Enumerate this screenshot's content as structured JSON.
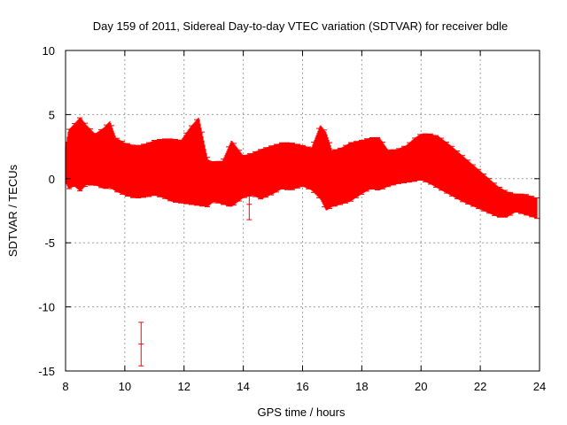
{
  "chart_data": {
    "type": "scatter",
    "title": "Day 159 of 2011, Sidereal Day-to-day VTEC variation (SDTVAR) for receiver bdle",
    "xlabel": "GPS time / hours",
    "ylabel": "SDTVAR / TECUs",
    "xlim": [
      8,
      24
    ],
    "ylim": [
      -15,
      10
    ],
    "xticks": [
      8,
      10,
      12,
      14,
      16,
      18,
      20,
      22,
      24
    ],
    "yticks": [
      -15,
      -10,
      -5,
      0,
      5,
      10
    ],
    "grid": true,
    "series_color": "#ff0000",
    "envelope": {
      "x": [
        8.0,
        8.1,
        8.3,
        8.5,
        8.7,
        9.0,
        9.3,
        9.5,
        9.7,
        10.0,
        10.3,
        10.5,
        10.8,
        11.0,
        11.3,
        11.6,
        11.9,
        12.2,
        12.5,
        12.8,
        13.0,
        13.3,
        13.6,
        14.0,
        14.3,
        14.6,
        15.0,
        15.3,
        15.6,
        16.0,
        16.3,
        16.6,
        16.8,
        17.0,
        17.3,
        17.6,
        18.0,
        18.3,
        18.6,
        18.9,
        19.2,
        19.5,
        19.8,
        20.0,
        20.3,
        20.6,
        21.0,
        21.4,
        21.8,
        22.2,
        22.6,
        22.9,
        23.2,
        23.5,
        23.9
      ],
      "upper": [
        2.5,
        3.8,
        4.3,
        4.8,
        4.2,
        3.5,
        4.0,
        4.5,
        3.2,
        2.8,
        2.6,
        2.6,
        2.8,
        3.0,
        3.1,
        3.1,
        3.0,
        4.0,
        4.8,
        1.5,
        1.3,
        1.4,
        3.0,
        1.8,
        2.0,
        2.3,
        2.6,
        2.8,
        2.8,
        2.6,
        2.4,
        4.2,
        3.6,
        2.2,
        2.4,
        2.8,
        3.0,
        3.2,
        3.2,
        2.2,
        2.3,
        2.6,
        3.2,
        3.5,
        3.5,
        3.3,
        2.6,
        1.8,
        1.0,
        0.2,
        -0.6,
        -1.0,
        -1.2,
        -1.2,
        -1.5
      ],
      "lower": [
        -0.3,
        -0.8,
        -0.6,
        -1.0,
        -0.5,
        -0.5,
        -0.8,
        -0.7,
        -1.0,
        -1.3,
        -1.5,
        -1.5,
        -1.4,
        -1.3,
        -1.5,
        -1.8,
        -1.9,
        -2.0,
        -2.1,
        -2.2,
        -1.8,
        -2.0,
        -2.2,
        -1.5,
        -1.3,
        -1.6,
        -1.2,
        -0.8,
        -0.9,
        -0.6,
        -0.9,
        -1.6,
        -2.5,
        -2.2,
        -2.0,
        -1.8,
        -1.2,
        -0.8,
        -0.9,
        -0.6,
        -0.4,
        -0.3,
        -0.2,
        -0.1,
        -0.4,
        -0.8,
        -1.3,
        -1.8,
        -2.2,
        -2.6,
        -3.0,
        -3.0,
        -2.6,
        -2.8,
        -3.1
      ]
    },
    "outliers": [
      {
        "x": 10.55,
        "y": -12.9,
        "err": 1.7
      },
      {
        "x": 14.2,
        "y": -2.0,
        "err": 1.2
      }
    ]
  }
}
